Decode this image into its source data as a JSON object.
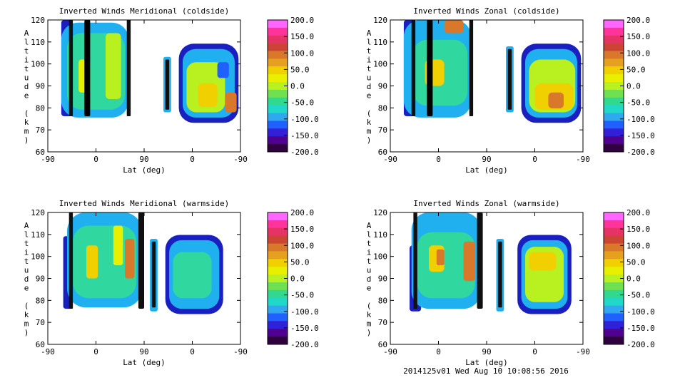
{
  "footer": "2014125v01 Wed Aug 10 10:08:56 2016",
  "colorbar": {
    "ticks": [
      "200.0",
      "150.0",
      "100.0",
      "50.0",
      "0.0",
      "-50.0",
      "-100.0",
      "-150.0",
      "-200.0"
    ],
    "colors": [
      "#ff66ff",
      "#ff3399",
      "#e63366",
      "#cc4433",
      "#d9772b",
      "#e6a020",
      "#f0d000",
      "#e8f000",
      "#b8f020",
      "#70e050",
      "#30d890",
      "#20d8c8",
      "#30a8f0",
      "#2060ff",
      "#3020d8",
      "#500090",
      "#300040"
    ]
  },
  "chart_data": [
    {
      "type": "heatmap",
      "title": "Inverted Winds Meridional (coldside)",
      "xlabel": "Lat (deg)",
      "ylabel": "Altitude (km)",
      "xticks": [
        "-90",
        "0",
        "90",
        "0",
        "-90"
      ],
      "yticks": [
        "60",
        "70",
        "80",
        "90",
        "100",
        "110",
        "120"
      ],
      "ylim": [
        60,
        120
      ],
      "zlim": [
        -200,
        200
      ],
      "colorbar_ticks": [
        "200.0",
        "150.0",
        "100.0",
        "50.0",
        "0.0",
        "-50.0",
        "-100.0",
        "-150.0",
        "-200.0"
      ]
    },
    {
      "type": "heatmap",
      "title": "Inverted Winds Zonal (coldside)",
      "xlabel": "Lat (deg)",
      "ylabel": "Altitude (km)",
      "xticks": [
        "-90",
        "0",
        "90",
        "0",
        "-90"
      ],
      "yticks": [
        "60",
        "70",
        "80",
        "90",
        "100",
        "110",
        "120"
      ],
      "ylim": [
        60,
        120
      ],
      "zlim": [
        -200,
        200
      ],
      "colorbar_ticks": [
        "200.0",
        "150.0",
        "100.0",
        "50.0",
        "0.0",
        "-50.0",
        "-100.0",
        "-150.0",
        "-200.0"
      ]
    },
    {
      "type": "heatmap",
      "title": "Inverted Winds Meridional (warmside)",
      "xlabel": "Lat (deg)",
      "ylabel": "Altitude (km)",
      "xticks": [
        "-90",
        "0",
        "90",
        "0",
        "-90"
      ],
      "yticks": [
        "60",
        "70",
        "80",
        "90",
        "100",
        "110",
        "120"
      ],
      "ylim": [
        60,
        120
      ],
      "zlim": [
        -200,
        200
      ],
      "colorbar_ticks": [
        "200.0",
        "150.0",
        "100.0",
        "50.0",
        "0.0",
        "-50.0",
        "-100.0",
        "-150.0",
        "-200.0"
      ]
    },
    {
      "type": "heatmap",
      "title": "Inverted Winds Zonal (warmside)",
      "xlabel": "Lat (deg)",
      "ylabel": "Altitude (km)",
      "xticks": [
        "-90",
        "0",
        "90",
        "0",
        "-90"
      ],
      "yticks": [
        "60",
        "70",
        "80",
        "90",
        "100",
        "110",
        "120"
      ],
      "ylim": [
        60,
        120
      ],
      "zlim": [
        -200,
        200
      ],
      "colorbar_ticks": [
        "200.0",
        "150.0",
        "100.0",
        "50.0",
        "0.0",
        "-50.0",
        "-100.0",
        "-150.0",
        "-200.0"
      ]
    }
  ]
}
